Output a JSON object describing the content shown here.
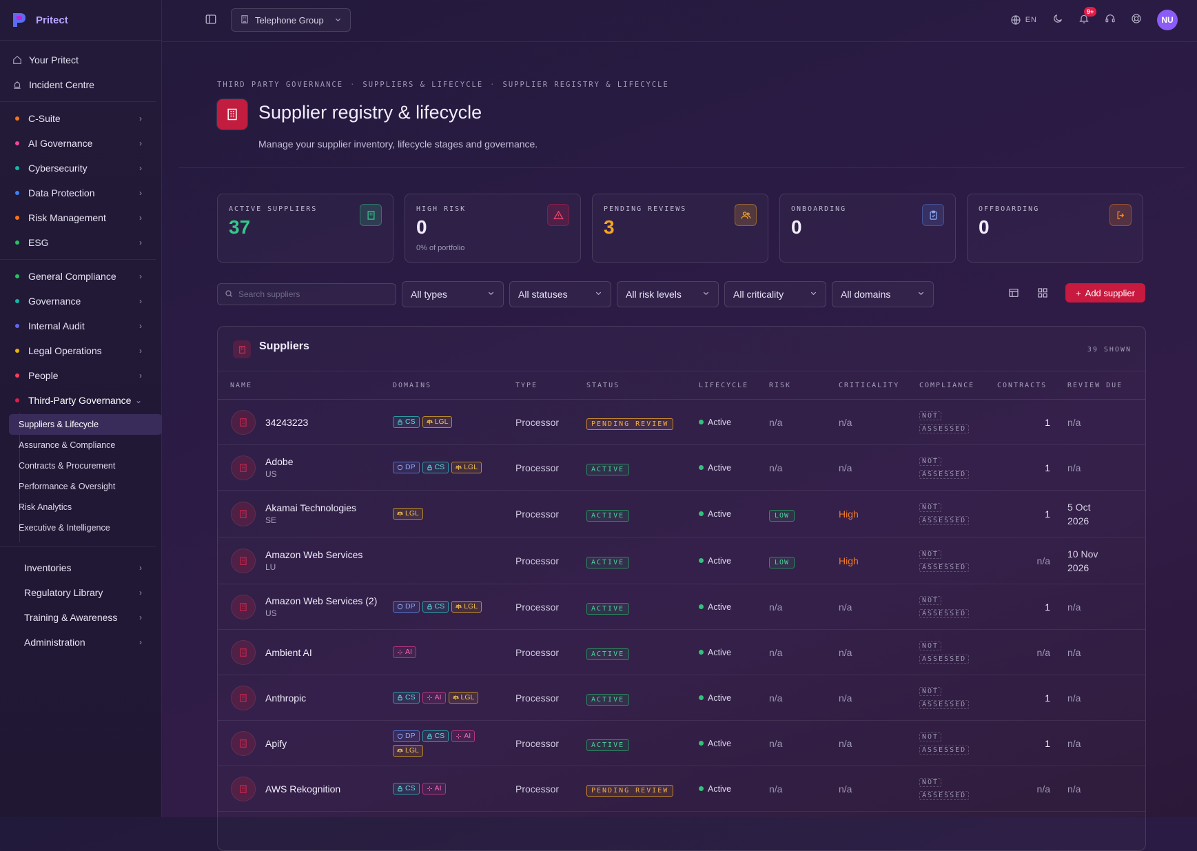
{
  "brand": {
    "name": "Pritect"
  },
  "topbar": {
    "org": "Telephone Group",
    "lang": "EN",
    "notifications_badge": "9+",
    "avatar_initials": "NU"
  },
  "sidebar": {
    "top": [
      {
        "label": "Your Pritect",
        "icon": "home-icon"
      },
      {
        "label": "Incident Centre",
        "icon": "siren-icon"
      }
    ],
    "group1": [
      {
        "label": "C-Suite",
        "color": "#f97316"
      },
      {
        "label": "AI Governance",
        "color": "#ec4899"
      },
      {
        "label": "Cybersecurity",
        "color": "#14b8a6"
      },
      {
        "label": "Data Protection",
        "color": "#3b82f6"
      },
      {
        "label": "Risk Management",
        "color": "#f97316"
      },
      {
        "label": "ESG",
        "color": "#22c55e"
      }
    ],
    "group2": [
      {
        "label": "General Compliance",
        "color": "#22c55e"
      },
      {
        "label": "Governance",
        "color": "#14b8a6"
      },
      {
        "label": "Internal Audit",
        "color": "#6366f1"
      },
      {
        "label": "Legal Operations",
        "color": "#eab308"
      },
      {
        "label": "People",
        "color": "#f43f5e"
      },
      {
        "label": "Third-Party Governance",
        "color": "#e11d48"
      }
    ],
    "third_party_sub": [
      "Suppliers & Lifecycle",
      "Assurance & Compliance",
      "Contracts & Procurement",
      "Performance & Oversight",
      "Risk Analytics",
      "Executive & Intelligence"
    ],
    "bottom": [
      {
        "label": "Inventories"
      },
      {
        "label": "Regulatory Library"
      },
      {
        "label": "Training & Awareness"
      },
      {
        "label": "Administration"
      }
    ]
  },
  "page": {
    "breadcrumb": [
      "THIRD PARTY GOVERNANCE",
      "SUPPLIERS & LIFECYCLE",
      "SUPPLIER REGISTRY & LIFECYCLE"
    ],
    "title": "Supplier registry & lifecycle",
    "subtitle": "Manage your supplier inventory, lifecycle stages and governance."
  },
  "kpis": [
    {
      "label": "ACTIVE SUPPLIERS",
      "value": "37",
      "note": "",
      "color": "#34c98a",
      "icon": "building-icon"
    },
    {
      "label": "HIGH RISK",
      "value": "0",
      "note": "0% of portfolio",
      "color": "#f1edfb",
      "icon": "alert-triangle-icon"
    },
    {
      "label": "PENDING REVIEWS",
      "value": "3",
      "note": "",
      "color": "#f5a524",
      "icon": "users-icon"
    },
    {
      "label": "ONBOARDING",
      "value": "0",
      "note": "",
      "color": "#f1edfb",
      "icon": "clipboard-check-icon"
    },
    {
      "label": "OFFBOARDING",
      "value": "0",
      "note": "",
      "color": "#f1edfb",
      "icon": "log-out-icon"
    }
  ],
  "filters": {
    "search_placeholder": "Search suppliers",
    "selects": [
      "All types",
      "All statuses",
      "All risk levels",
      "All criticality",
      "All domains"
    ],
    "add_label": "Add supplier"
  },
  "table": {
    "title": "Suppliers",
    "count": "39 SHOWN",
    "columns": [
      "NAME",
      "DOMAINS",
      "TYPE",
      "STATUS",
      "LIFECYCLE",
      "RISK",
      "CRITICALITY",
      "COMPLIANCE",
      "CONTRACTS",
      "REVIEW DUE"
    ],
    "rows": [
      {
        "name": "34243223",
        "country": "",
        "domains": [
          "CS",
          "LGL"
        ],
        "type": "Processor",
        "status": "PENDING REVIEW",
        "status_kind": "pending",
        "lifecycle": "Active",
        "risk": "n/a",
        "criticality": "n/a",
        "compliance": [
          "NOT",
          "ASSESSED"
        ],
        "contracts": "1",
        "review_due": [
          "n/a"
        ]
      },
      {
        "name": "Adobe",
        "country": "US",
        "domains": [
          "DP",
          "CS",
          "LGL"
        ],
        "type": "Processor",
        "status": "ACTIVE",
        "status_kind": "active",
        "lifecycle": "Active",
        "risk": "n/a",
        "criticality": "n/a",
        "compliance": [
          "NOT",
          "ASSESSED"
        ],
        "contracts": "1",
        "review_due": [
          "n/a"
        ]
      },
      {
        "name": "Akamai Technologies",
        "country": "SE",
        "domains": [
          "LGL"
        ],
        "type": "Processor",
        "status": "ACTIVE",
        "status_kind": "active",
        "lifecycle": "Active",
        "risk": "LOW",
        "criticality": "High",
        "compliance": [
          "NOT",
          "ASSESSED"
        ],
        "contracts": "1",
        "review_due": [
          "5 Oct",
          "2026"
        ]
      },
      {
        "name": "Amazon Web Services",
        "country": "LU",
        "domains": [],
        "type": "Processor",
        "status": "ACTIVE",
        "status_kind": "active",
        "lifecycle": "Active",
        "risk": "LOW",
        "criticality": "High",
        "compliance": [
          "NOT",
          "ASSESSED"
        ],
        "contracts": "n/a",
        "review_due": [
          "10 Nov",
          "2026"
        ]
      },
      {
        "name": "Amazon Web Services (2)",
        "country": "US",
        "domains": [
          "DP",
          "CS",
          "LGL"
        ],
        "type": "Processor",
        "status": "ACTIVE",
        "status_kind": "active",
        "lifecycle": "Active",
        "risk": "n/a",
        "criticality": "n/a",
        "compliance": [
          "NOT",
          "ASSESSED"
        ],
        "contracts": "1",
        "review_due": [
          "n/a"
        ]
      },
      {
        "name": "Ambient AI",
        "country": "",
        "domains": [
          "AI"
        ],
        "type": "Processor",
        "status": "ACTIVE",
        "status_kind": "active",
        "lifecycle": "Active",
        "risk": "n/a",
        "criticality": "n/a",
        "compliance": [
          "NOT",
          "ASSESSED"
        ],
        "contracts": "n/a",
        "review_due": [
          "n/a"
        ]
      },
      {
        "name": "Anthropic",
        "country": "",
        "domains": [
          "CS",
          "AI",
          "LGL"
        ],
        "type": "Processor",
        "status": "ACTIVE",
        "status_kind": "active",
        "lifecycle": "Active",
        "risk": "n/a",
        "criticality": "n/a",
        "compliance": [
          "NOT",
          "ASSESSED"
        ],
        "contracts": "1",
        "review_due": [
          "n/a"
        ]
      },
      {
        "name": "Apify",
        "country": "",
        "domains": [
          "DP",
          "CS",
          "AI",
          "LGL"
        ],
        "type": "Processor",
        "status": "ACTIVE",
        "status_kind": "active",
        "lifecycle": "Active",
        "risk": "n/a",
        "criticality": "n/a",
        "compliance": [
          "NOT",
          "ASSESSED"
        ],
        "contracts": "1",
        "review_due": [
          "n/a"
        ]
      },
      {
        "name": "AWS Rekognition",
        "country": "",
        "domains": [
          "CS",
          "AI"
        ],
        "type": "Processor",
        "status": "PENDING REVIEW",
        "status_kind": "pending",
        "lifecycle": "Active",
        "risk": "n/a",
        "criticality": "n/a",
        "compliance": [
          "NOT",
          "ASSESSED"
        ],
        "contracts": "n/a",
        "review_due": [
          "n/a"
        ]
      }
    ]
  }
}
